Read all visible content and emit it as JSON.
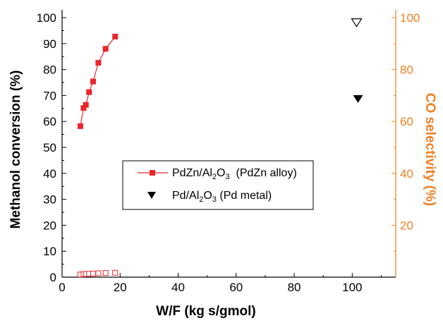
{
  "chart_data": {
    "type": "scatter",
    "xlabel": "W/F (kg s/gmol)",
    "ylabel_left": "Methanol conversion (%)",
    "ylabel_right": "CO selectivity (%)",
    "xlim": [
      0,
      115
    ],
    "ylim_left": [
      0,
      103
    ],
    "ylim_right": [
      0,
      103
    ],
    "x_ticks": [
      "0",
      "20",
      "40",
      "60",
      "80",
      "100"
    ],
    "y_left_ticks": [
      "0",
      "10",
      "20",
      "30",
      "40",
      "50",
      "60",
      "70",
      "80",
      "90",
      "100"
    ],
    "y_right_ticks": [
      "20",
      "40",
      "60",
      "80",
      "100"
    ],
    "colors": {
      "red": "#e8262b",
      "black": "#000000",
      "orange": "#f07f22"
    },
    "series": [
      {
        "name": "PdZn/Al2O3 (PdZn alloy)",
        "axis": "left",
        "marker": "filled-square",
        "line": true,
        "color": "#e8262b",
        "x": [
          6.3,
          7.4,
          8.2,
          9.3,
          10.7,
          12.5,
          15.0,
          18.3
        ],
        "y": [
          58.2,
          65.2,
          66.4,
          71.3,
          75.4,
          82.6,
          88.0,
          92.7
        ]
      },
      {
        "axis": "right",
        "marker": "open-square",
        "line": false,
        "color": "#e8262b",
        "x": [
          6.3,
          7.4,
          8.2,
          9.3,
          10.7,
          12.5,
          15.0,
          18.3
        ],
        "y": [
          1.0,
          1.2,
          1.2,
          1.3,
          1.4,
          1.5,
          1.6,
          1.7
        ]
      },
      {
        "name": "Pd/Al2O3 (Pd metal)",
        "axis": "left",
        "marker": "filled-triangle-down",
        "line": false,
        "color": "#000000",
        "x": [
          102.0
        ],
        "y": [
          68.8
        ]
      },
      {
        "axis": "right",
        "marker": "open-triangle-down",
        "line": false,
        "color": "#000000",
        "x": [
          101.5
        ],
        "y": [
          98.2
        ]
      }
    ],
    "legend": {
      "position": "center",
      "entry1": {
        "main": "PdZn/Al",
        "sub1": "2",
        "mid": "O",
        "sub2": "3",
        "tail": "  (PdZn alloy)"
      },
      "entry2": {
        "main": "Pd/Al",
        "sub1": "2",
        "mid": "O",
        "sub2": "3",
        "tail": " (Pd metal)"
      }
    }
  }
}
